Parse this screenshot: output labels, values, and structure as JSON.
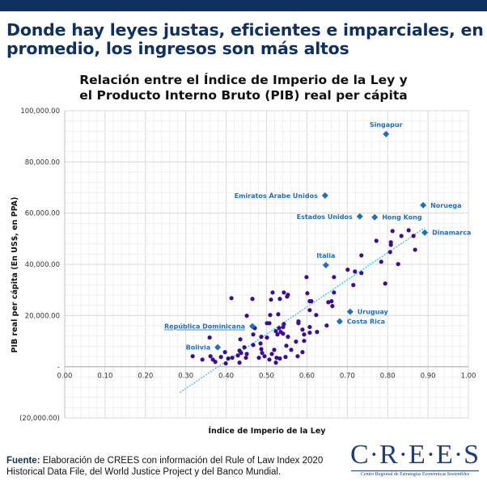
{
  "headline": "Donde hay leyes justas, eficientes e imparciales, en promedio, los ingresos son más altos",
  "footer": {
    "label": "Fuente:",
    "text": " Elaboración de CREES con información del Rule of Law Index 2020 Historical Data File, del World Justice Project y del Banco Mundial."
  },
  "logo": {
    "name": "C·R·E·E·S",
    "subtitle": "Centro Regional de Estrategias Económicas Sostenibles"
  },
  "colors": {
    "brand": "#10305f",
    "points": "#3d0d91",
    "highlight": "#1f6fbd",
    "trendline": "#28c8f0"
  },
  "chart_data": {
    "type": "scatter",
    "title": "Relación entre el Índice de Imperio de la Ley y el Producto Interno Bruto (PIB) real per cápita",
    "title_lines": [
      "Relación entre el Índice de Imperio de la Ley y",
      "el Producto Interno Bruto (PIB) real per cápita"
    ],
    "xlabel": "Índice de Imperio de la Ley",
    "ylabel": "PIB real per cápita (En US$, en PPA)",
    "xlim": [
      0,
      1
    ],
    "ylim": [
      -20000,
      100000
    ],
    "xticks": [
      "0.00",
      "0.10",
      "0.20",
      "0.30",
      "0.40",
      "0.50",
      "0.60",
      "0.70",
      "0.80",
      "0.90",
      "1.00"
    ],
    "yticks": [
      {
        "value": 100000,
        "label": "100,000.00"
      },
      {
        "value": 80000,
        "label": "80,000.00"
      },
      {
        "value": 60000,
        "label": "60,000.00"
      },
      {
        "value": 40000,
        "label": "40,000.00"
      },
      {
        "value": 20000,
        "label": "20,000.00"
      },
      {
        "value": 0,
        "label": "-"
      },
      {
        "value": -20000,
        "label": "(20,000.00)"
      }
    ],
    "grid": true,
    "highlighted": [
      {
        "name": "Singapur",
        "x": 0.796,
        "y": 90900,
        "label_pos": "above"
      },
      {
        "name": "Emiratos Árabe Unidos",
        "x": 0.645,
        "y": 66900,
        "label_pos": "left"
      },
      {
        "name": "Noruega",
        "x": 0.888,
        "y": 63100,
        "label_pos": "right"
      },
      {
        "name": "Estados Unidos",
        "x": 0.731,
        "y": 58700,
        "label_pos": "left"
      },
      {
        "name": "Hong Kong",
        "x": 0.768,
        "y": 58400,
        "label_pos": "right"
      },
      {
        "name": "Dinamarca",
        "x": 0.892,
        "y": 52400,
        "label_pos": "right"
      },
      {
        "name": "Italia",
        "x": 0.647,
        "y": 39700,
        "label_pos": "above"
      },
      {
        "name": "Uruguay",
        "x": 0.707,
        "y": 21500,
        "label_pos": "right"
      },
      {
        "name": "Costa Rica",
        "x": 0.681,
        "y": 17700,
        "label_pos": "right"
      },
      {
        "name": "República Dominicana",
        "x": 0.465,
        "y": 15800,
        "label_pos": "left"
      },
      {
        "name": "Bolivia",
        "x": 0.379,
        "y": 7600,
        "label_pos": "left"
      }
    ],
    "points": [
      [
        0.812,
        53000
      ],
      [
        0.834,
        51100
      ],
      [
        0.852,
        53300
      ],
      [
        0.864,
        51100
      ],
      [
        0.772,
        49200
      ],
      [
        0.808,
        48600
      ],
      [
        0.808,
        47600
      ],
      [
        0.806,
        44800
      ],
      [
        0.868,
        45700
      ],
      [
        0.735,
        43500
      ],
      [
        0.784,
        41000
      ],
      [
        0.826,
        40100
      ],
      [
        0.701,
        37900
      ],
      [
        0.719,
        37200
      ],
      [
        0.735,
        36600
      ],
      [
        0.715,
        31900
      ],
      [
        0.794,
        32500
      ],
      [
        0.599,
        35000
      ],
      [
        0.667,
        35000
      ],
      [
        0.667,
        29000
      ],
      [
        0.607,
        25600
      ],
      [
        0.653,
        25200
      ],
      [
        0.661,
        25600
      ],
      [
        0.663,
        23700
      ],
      [
        0.623,
        20200
      ],
      [
        0.649,
        16100
      ],
      [
        0.607,
        15500
      ],
      [
        0.579,
        17000
      ],
      [
        0.515,
        29000
      ],
      [
        0.551,
        27400
      ],
      [
        0.601,
        28700
      ],
      [
        0.511,
        26200
      ],
      [
        0.533,
        26500
      ],
      [
        0.543,
        29000
      ],
      [
        0.553,
        28100
      ],
      [
        0.611,
        25600
      ],
      [
        0.465,
        26500
      ],
      [
        0.413,
        26800
      ],
      [
        0.451,
        19900
      ],
      [
        0.509,
        20200
      ],
      [
        0.529,
        20500
      ],
      [
        0.607,
        22100
      ],
      [
        0.579,
        17700
      ],
      [
        0.501,
        17000
      ],
      [
        0.507,
        17000
      ],
      [
        0.471,
        15100
      ],
      [
        0.467,
        12600
      ],
      [
        0.487,
        11700
      ],
      [
        0.501,
        11400
      ],
      [
        0.523,
        13900
      ],
      [
        0.527,
        12600
      ],
      [
        0.535,
        13600
      ],
      [
        0.531,
        15100
      ],
      [
        0.541,
        15500
      ],
      [
        0.543,
        16700
      ],
      [
        0.541,
        12900
      ],
      [
        0.553,
        11700
      ],
      [
        0.589,
        14500
      ],
      [
        0.573,
        9800
      ],
      [
        0.593,
        12600
      ],
      [
        0.593,
        10100
      ],
      [
        0.625,
        13600
      ],
      [
        0.607,
        13300
      ],
      [
        0.549,
        8200
      ],
      [
        0.519,
        6600
      ],
      [
        0.513,
        5000
      ],
      [
        0.561,
        6600
      ],
      [
        0.577,
        4100
      ],
      [
        0.589,
        5700
      ],
      [
        0.433,
        6300
      ],
      [
        0.435,
        10700
      ],
      [
        0.445,
        7600
      ],
      [
        0.485,
        9100
      ],
      [
        0.487,
        6900
      ],
      [
        0.489,
        5400
      ],
      [
        0.467,
        8500
      ],
      [
        0.449,
        3500
      ],
      [
        0.495,
        4100
      ],
      [
        0.507,
        2800
      ],
      [
        0.523,
        1600
      ],
      [
        0.481,
        3500
      ],
      [
        0.533,
        3200
      ],
      [
        0.451,
        5000
      ],
      [
        0.525,
        3500
      ],
      [
        0.547,
        3800
      ],
      [
        0.359,
        11400
      ],
      [
        0.317,
        4100
      ],
      [
        0.341,
        2800
      ],
      [
        0.361,
        4100
      ],
      [
        0.367,
        2800
      ],
      [
        0.373,
        1900
      ],
      [
        0.387,
        3800
      ],
      [
        0.397,
        5700
      ],
      [
        0.405,
        3200
      ],
      [
        0.399,
        1300
      ],
      [
        0.415,
        3500
      ],
      [
        0.429,
        4400
      ],
      [
        0.437,
        5400
      ],
      [
        0.433,
        1600
      ]
    ],
    "trendline": {
      "x": [
        0.285,
        0.892
      ],
      "y": [
        -10100,
        54300
      ]
    }
  }
}
